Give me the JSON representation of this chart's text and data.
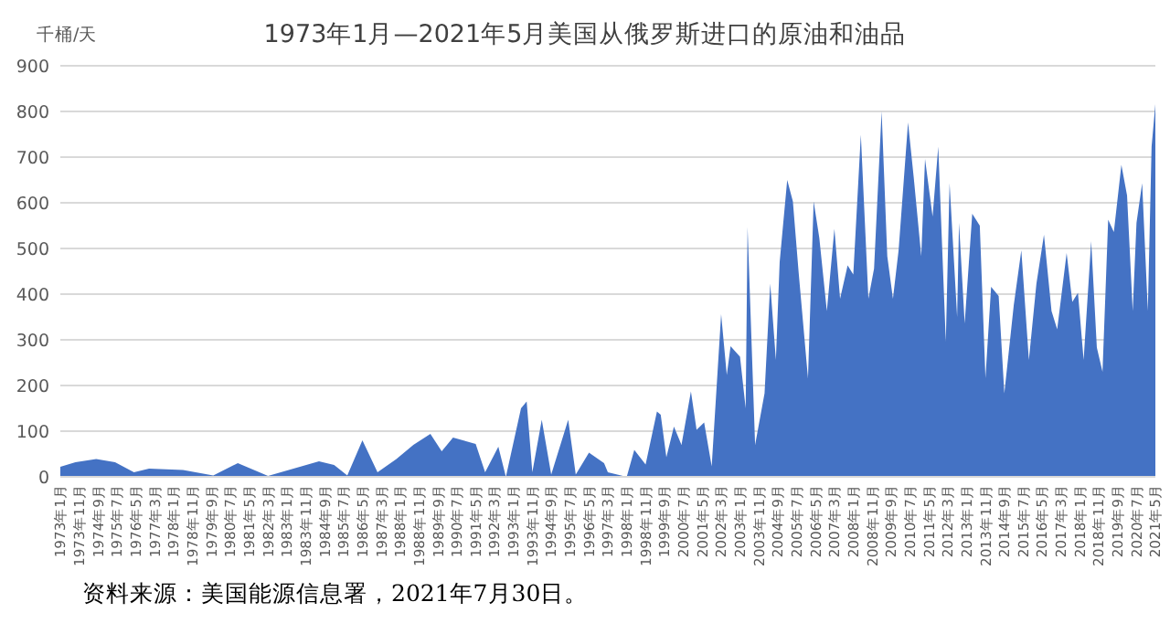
{
  "chart_data": {
    "type": "area",
    "title": "1973年1月—2021年5月美国从俄罗斯进口的原油和油品",
    "ylabel": "千桶/天",
    "annotations": [
      "资料来源：美国能源信息署，2021年7月30日。"
    ],
    "grid": "y",
    "marker": "none",
    "xlim": [
      "1973-01",
      "2021-05"
    ],
    "ylim": [
      0,
      900
    ],
    "yticks": [
      0,
      100,
      200,
      300,
      400,
      500,
      600,
      700,
      800,
      900
    ],
    "xticks": [
      {
        "value": "1973-01",
        "label": "1973年1月"
      },
      {
        "value": "1973-11",
        "label": "1973年11月"
      },
      {
        "value": "1974-09",
        "label": "1974年9月"
      },
      {
        "value": "1975-07",
        "label": "1975年7月"
      },
      {
        "value": "1976-05",
        "label": "1976年5月"
      },
      {
        "value": "1977-03",
        "label": "1977年3月"
      },
      {
        "value": "1978-01",
        "label": "1978年1月"
      },
      {
        "value": "1978-11",
        "label": "1978年11月"
      },
      {
        "value": "1979-09",
        "label": "1979年9月"
      },
      {
        "value": "1980-07",
        "label": "1980年7月"
      },
      {
        "value": "1981-05",
        "label": "1981年5月"
      },
      {
        "value": "1982-03",
        "label": "1982年3月"
      },
      {
        "value": "1983-01",
        "label": "1983年1月"
      },
      {
        "value": "1983-11",
        "label": "1983年11月"
      },
      {
        "value": "1984-09",
        "label": "1984年9月"
      },
      {
        "value": "1985-07",
        "label": "1985年7月"
      },
      {
        "value": "1986-05",
        "label": "1986年5月"
      },
      {
        "value": "1987-03",
        "label": "1987年3月"
      },
      {
        "value": "1988-01",
        "label": "1988年1月"
      },
      {
        "value": "1988-11",
        "label": "1988年11月"
      },
      {
        "value": "1989-09",
        "label": "1989年9月"
      },
      {
        "value": "1990-07",
        "label": "1990年7月"
      },
      {
        "value": "1991-05",
        "label": "1991年5月"
      },
      {
        "value": "1992-03",
        "label": "1992年3月"
      },
      {
        "value": "1993-01",
        "label": "1993年1月"
      },
      {
        "value": "1993-11",
        "label": "1993年11月"
      },
      {
        "value": "1994-09",
        "label": "1994年9月"
      },
      {
        "value": "1995-07",
        "label": "1995年7月"
      },
      {
        "value": "1996-05",
        "label": "1996年5月"
      },
      {
        "value": "1997-03",
        "label": "1997年3月"
      },
      {
        "value": "1998-01",
        "label": "1998年1月"
      },
      {
        "value": "1998-11",
        "label": "1998年11月"
      },
      {
        "value": "1999-09",
        "label": "1999年9月"
      },
      {
        "value": "2000-07",
        "label": "2000年7月"
      },
      {
        "value": "2001-05",
        "label": "2001年5月"
      },
      {
        "value": "2002-03",
        "label": "2002年3月"
      },
      {
        "value": "2003-01",
        "label": "2003年1月"
      },
      {
        "value": "2003-11",
        "label": "2003年11月"
      },
      {
        "value": "2004-09",
        "label": "2004年9月"
      },
      {
        "value": "2005-07",
        "label": "2005年7月"
      },
      {
        "value": "2006-05",
        "label": "2006年5月"
      },
      {
        "value": "2007-03",
        "label": "2007年3月"
      },
      {
        "value": "2008-01",
        "label": "2008年1月"
      },
      {
        "value": "2008-11",
        "label": "2008年11月"
      },
      {
        "value": "2009-09",
        "label": "2009年9月"
      },
      {
        "value": "2010-07",
        "label": "2010年7月"
      },
      {
        "value": "2011-05",
        "label": "2011年5月"
      },
      {
        "value": "2012-03",
        "label": "2012年3月"
      },
      {
        "value": "2013-01",
        "label": "2013年1月"
      },
      {
        "value": "2013-11",
        "label": "2013年11月"
      },
      {
        "value": "2014-09",
        "label": "2014年9月"
      },
      {
        "value": "2015-07",
        "label": "2015年7月"
      },
      {
        "value": "2016-05",
        "label": "2016年5月"
      },
      {
        "value": "2017-03",
        "label": "2017年3月"
      },
      {
        "value": "2018-01",
        "label": "2018年1月"
      },
      {
        "value": "2018-11",
        "label": "2018年11月"
      },
      {
        "value": "2019-09",
        "label": "2019年9月"
      },
      {
        "value": "2020-07",
        "label": "2020年7月"
      },
      {
        "value": "2021-05",
        "label": "2021年5月"
      }
    ],
    "series": [
      {
        "color": "#4472c4",
        "x": [
          "1973-01",
          "1973-09",
          "1974-08",
          "1975-06",
          "1976-04",
          "1976-12",
          "1978-06",
          "1979-10",
          "1980-11",
          "1982-03",
          "1984-06",
          "1985-02",
          "1985-09",
          "1986-05",
          "1987-01",
          "1987-11",
          "1988-08",
          "1989-05",
          "1989-11",
          "1990-05",
          "1991-05",
          "1991-10",
          "1992-05",
          "1992-09",
          "1993-05",
          "1993-08",
          "1993-11",
          "1994-04",
          "1994-09",
          "1995-06",
          "1995-10",
          "1996-05",
          "1997-01",
          "1997-03",
          "1998-01",
          "1998-05",
          "1998-11",
          "1999-05",
          "1999-07",
          "1999-10",
          "2000-02",
          "2000-06",
          "2000-11",
          "2001-02",
          "2001-06",
          "2001-10",
          "2002-03",
          "2002-06",
          "2002-08",
          "2003-01",
          "2003-04",
          "2003-05",
          "2003-09",
          "2004-02",
          "2004-05",
          "2004-08",
          "2004-10",
          "2005-02",
          "2005-05",
          "2005-08",
          "2006-01",
          "2006-04",
          "2006-07",
          "2006-11",
          "2007-03",
          "2007-06",
          "2007-10",
          "2008-01",
          "2008-05",
          "2008-09",
          "2008-12",
          "2009-04",
          "2009-07",
          "2009-10",
          "2010-01",
          "2010-06",
          "2010-09",
          "2011-01",
          "2011-03",
          "2011-07",
          "2011-10",
          "2012-02",
          "2012-04",
          "2012-08",
          "2012-09",
          "2012-12",
          "2013-04",
          "2013-08",
          "2013-11",
          "2014-02",
          "2014-06",
          "2014-09",
          "2015-02",
          "2015-06",
          "2015-10",
          "2016-02",
          "2016-06",
          "2016-10",
          "2017-01",
          "2017-06",
          "2017-09",
          "2017-12",
          "2018-03",
          "2018-07",
          "2018-10",
          "2019-01",
          "2019-04",
          "2019-07",
          "2019-11",
          "2020-02",
          "2020-05",
          "2020-07",
          "2020-10",
          "2021-01",
          "2021-03",
          "2021-05"
        ],
        "values": [
          22,
          32,
          39,
          32,
          10,
          18,
          15,
          3,
          30,
          2,
          34,
          26,
          3,
          80,
          10,
          39,
          70,
          94,
          56,
          86,
          72,
          10,
          66,
          0,
          150,
          165,
          10,
          125,
          5,
          125,
          5,
          53,
          30,
          10,
          0,
          59,
          27,
          143,
          136,
          43,
          110,
          70,
          187,
          103,
          119,
          23,
          356,
          223,
          286,
          263,
          150,
          547,
          70,
          183,
          423,
          256,
          470,
          650,
          603,
          450,
          216,
          603,
          523,
          363,
          543,
          390,
          463,
          443,
          749,
          390,
          456,
          800,
          483,
          390,
          496,
          776,
          656,
          483,
          696,
          570,
          723,
          296,
          643,
          350,
          556,
          336,
          576,
          550,
          216,
          416,
          396,
          183,
          376,
          496,
          256,
          423,
          530,
          363,
          323,
          490,
          383,
          403,
          256,
          516,
          283,
          230,
          563,
          536,
          683,
          616,
          363,
          556,
          643,
          363,
          723,
          816
        ]
      }
    ]
  }
}
